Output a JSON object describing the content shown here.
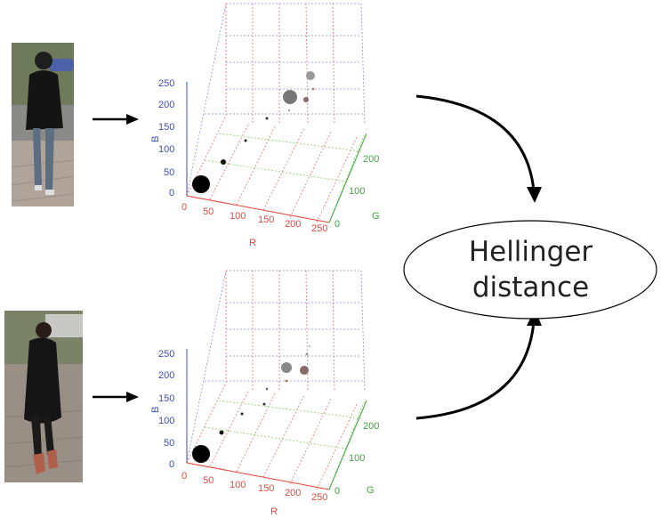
{
  "ellipse": {
    "line1": "Hellinger",
    "line2": "distance"
  },
  "colors": {
    "r_axis": "#e8443a",
    "g_axis": "#3aa83a",
    "b_axis": "#3b4bb8",
    "grid_r": "#e87070",
    "grid_g": "#8ccc6a",
    "grid_b": "#8c8cd8"
  },
  "plots": [
    {
      "axis_labels": {
        "r": "R",
        "g": "G",
        "b": "B"
      },
      "r_ticks": [
        "0",
        "50",
        "100",
        "150",
        "200",
        "250"
      ],
      "g_ticks": [
        "0",
        "100",
        "200"
      ],
      "b_ticks": [
        "0",
        "50",
        "100",
        "150",
        "200",
        "250"
      ]
    },
    {
      "axis_labels": {
        "r": "R",
        "g": "G",
        "b": "B"
      },
      "r_ticks": [
        "0",
        "50",
        "100",
        "150",
        "200",
        "250"
      ],
      "g_ticks": [
        "0",
        "100",
        "200"
      ],
      "b_ticks": [
        "0",
        "50",
        "100",
        "150",
        "200",
        "250"
      ]
    }
  ]
}
